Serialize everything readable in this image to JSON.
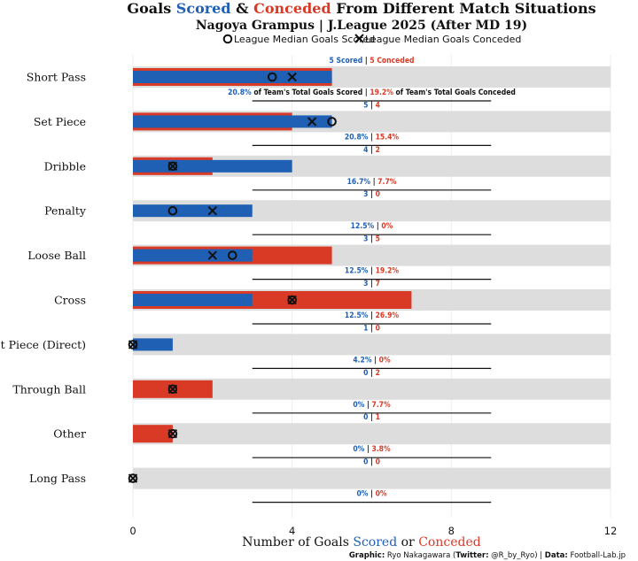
{
  "chart_data": {
    "type": "bar",
    "title": {
      "prefix": "Goals ",
      "scored_word": "Scored",
      "amp": " & ",
      "conceded_word": "Conceded",
      "suffix": " From Different Match Situations"
    },
    "subtitle": "Nagoya Grampus | J.League 2025 (After MD 19)",
    "legend": {
      "median_scored": "League Median Goals Scored",
      "median_conceded": "League Median Goals Conceded"
    },
    "xlabel": {
      "prefix": "Number of Goals ",
      "scored_word": "Scored",
      "mid": " or ",
      "conceded_word": "Conceded"
    },
    "xlim": [
      0,
      12
    ],
    "xticks": [
      0,
      4,
      8,
      12
    ],
    "colors": {
      "scored": "#1f5fb4",
      "conceded": "#d83a26",
      "background_bar": "#dddddd",
      "text": "#111111"
    },
    "first_row_labels": {
      "count_scored_word": "Scored",
      "count_conceded_word": "Conceded",
      "pct_scored_text": "of Team's Total Goals Scored",
      "pct_conceded_text": "of Team's Total Goals Conceded"
    },
    "categories": [
      "Short Pass",
      "Set Piece",
      "Dribble",
      "Penalty",
      "Loose Ball",
      "Cross",
      "Set Piece (Direct)",
      "Through Ball",
      "Other",
      "Long Pass"
    ],
    "series": [
      {
        "name": "Scored",
        "values": [
          5,
          5,
          4,
          3,
          3,
          3,
          1,
          0,
          0,
          0
        ]
      },
      {
        "name": "Conceded",
        "values": [
          5,
          4,
          2,
          0,
          5,
          7,
          0,
          2,
          1,
          0
        ]
      }
    ],
    "pct_scored": [
      "20.8%",
      "20.8%",
      "16.7%",
      "12.5%",
      "12.5%",
      "12.5%",
      "4.2%",
      "0%",
      "0%",
      "0%"
    ],
    "pct_conceded": [
      "19.2%",
      "15.4%",
      "7.7%",
      "0%",
      "19.2%",
      "26.9%",
      "0%",
      "7.7%",
      "3.8%",
      "0%"
    ],
    "league_median_scored": [
      3.5,
      5,
      1,
      1,
      2.5,
      4,
      0,
      1,
      1,
      0
    ],
    "league_median_conceded": [
      4,
      4.5,
      1,
      2,
      2,
      4,
      0,
      1,
      1,
      0
    ]
  },
  "footer": {
    "graphic_label": "Graphic:",
    "graphic_value": " Ryo Nakagawara (",
    "twitter_label": "Twitter:",
    "twitter_value": " @R_by_Ryo) | ",
    "data_label": "Data:",
    "data_value": " Football-Lab.jp"
  }
}
